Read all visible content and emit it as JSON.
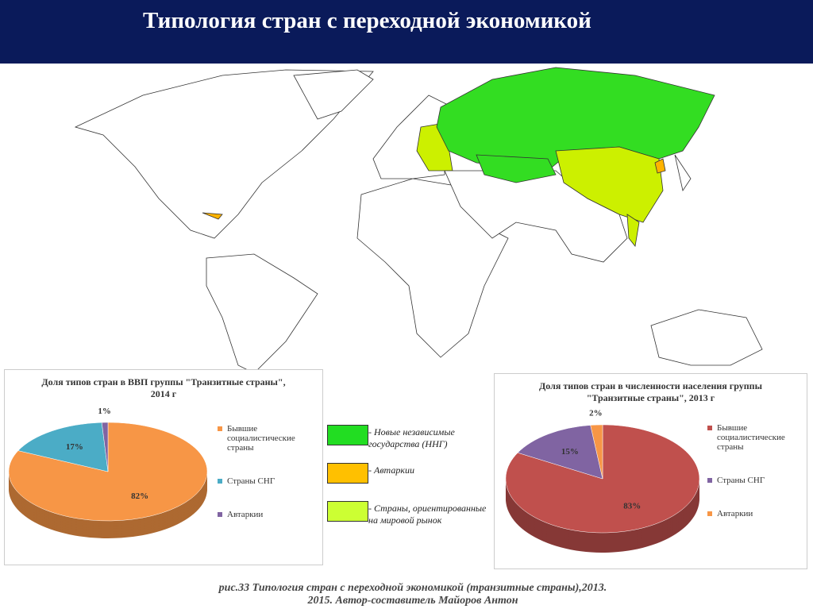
{
  "header": {
    "title": "Типология стран с переходной экономикой"
  },
  "chart_data": [
    {
      "type": "pie",
      "title": "Доля типов стран в ВВП группы \"Транзитные страны\", 2014 г",
      "categories": [
        "Бывшие социалистические страны",
        "Страны СНГ",
        "Автаркии"
      ],
      "values": [
        82,
        17,
        1
      ],
      "value_labels": [
        "82%",
        "17%",
        "1%"
      ],
      "colors": [
        "#f79646",
        "#4bacc6",
        "#8064a2"
      ]
    },
    {
      "type": "pie",
      "title": "Доля типов стран в численности населения группы \"Транзитные страны\", 2013 г",
      "categories": [
        "Бывшие социалистические страны",
        "Страны СНГ",
        "Автаркии"
      ],
      "values": [
        83,
        15,
        2
      ],
      "value_labels": [
        "83%",
        "15%",
        "2%"
      ],
      "colors": [
        "#c0504d",
        "#8064a2",
        "#f79646"
      ]
    }
  ],
  "map_legend": [
    {
      "label": "- Новые независимые государства (ННГ)",
      "color": "#22dd22"
    },
    {
      "label": "- Автаркии",
      "color": "#ffc000"
    },
    {
      "label": "- Страны, ориентированные на мировой рынок",
      "color": "#ccff33"
    }
  ],
  "caption": [
    "рис.33 Типология стран с переходной экономикой (транзитные страны),2013.",
    "2015. Автор-составитель Майоров Антон"
  ]
}
